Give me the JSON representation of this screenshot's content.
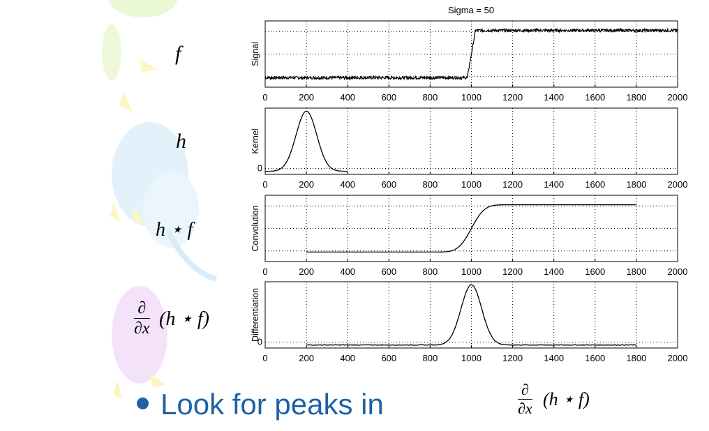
{
  "figure_title": "Sigma = 50",
  "row_labels": {
    "f": "f",
    "h": "h",
    "hf": "h ⋆ f",
    "deriv_num": "∂",
    "deriv_den": "∂x",
    "deriv_rest": "(h ⋆ f)"
  },
  "bullet": {
    "text": "Look for peaks in",
    "expr_num": "∂",
    "expr_den": "∂x",
    "expr_rest": "(h ⋆ f)"
  },
  "colors": {
    "bullet": "#1f62a3",
    "trace": "#000000",
    "grid": "#000000"
  },
  "chart_data": [
    {
      "type": "line",
      "title": "Sigma = 50",
      "ylabel": "Signal",
      "xlim": [
        0,
        2000
      ],
      "ylim": [
        -0.2,
        1.2
      ],
      "xticks": [
        "0",
        "200",
        "400",
        "600",
        "800",
        "1000",
        "1200",
        "1400",
        "1600",
        "1800",
        "2000"
      ],
      "series": [
        {
          "name": "signal",
          "x": [
            0,
            980,
            1020,
            2000
          ],
          "values": [
            0,
            0,
            1,
            1
          ],
          "noise": 0.03
        }
      ]
    },
    {
      "type": "line",
      "ylabel": "Kernel",
      "ytick_label": "0",
      "xlim": [
        0,
        2000
      ],
      "ylim": [
        -0.05,
        1.05
      ],
      "xticks": [
        "0",
        "200",
        "400",
        "600",
        "800",
        "1000",
        "1200",
        "1400",
        "1600",
        "1800",
        "2000"
      ],
      "series": [
        {
          "name": "kernel",
          "x_range": [
            0,
            400
          ],
          "mean": 200,
          "sigma": 50,
          "peak": 1
        }
      ]
    },
    {
      "type": "line",
      "ylabel": "Convolution",
      "xlim": [
        0,
        2000
      ],
      "ylim": [
        -0.2,
        1.2
      ],
      "xticks": [
        "0",
        "200",
        "400",
        "600",
        "800",
        "1000",
        "1200",
        "1400",
        "1600",
        "1800",
        "2000"
      ],
      "series": [
        {
          "name": "convolution",
          "x_range": [
            200,
            1800
          ],
          "center": 1000,
          "sigma": 50,
          "low": 0,
          "high": 1
        }
      ]
    },
    {
      "type": "line",
      "ylabel": "Differentiation",
      "ytick_label": "0",
      "xlim": [
        0,
        2000
      ],
      "ylim": [
        -0.05,
        1.05
      ],
      "xticks": [
        "0",
        "200",
        "400",
        "600",
        "800",
        "1000",
        "1200",
        "1400",
        "1600",
        "1800",
        "2000"
      ],
      "series": [
        {
          "name": "derivative",
          "x_range": [
            200,
            1800
          ],
          "mean": 1000,
          "sigma": 50,
          "peak": 1
        }
      ]
    }
  ]
}
